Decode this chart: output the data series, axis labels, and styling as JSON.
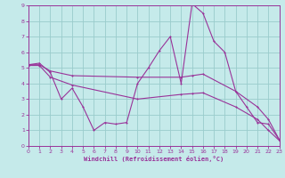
{
  "xlabel": "Windchill (Refroidissement éolien,°C)",
  "background_color": "#c5eaea",
  "grid_color": "#99cccc",
  "line_color": "#993399",
  "xlim": [
    0,
    23
  ],
  "ylim": [
    0,
    9
  ],
  "xticks": [
    0,
    1,
    2,
    3,
    4,
    5,
    6,
    7,
    8,
    9,
    10,
    11,
    12,
    13,
    14,
    15,
    16,
    17,
    18,
    19,
    20,
    21,
    22,
    23
  ],
  "yticks": [
    0,
    1,
    2,
    3,
    4,
    5,
    6,
    7,
    8,
    9
  ],
  "line1_x": [
    0,
    1,
    2,
    3,
    4,
    5,
    6,
    7,
    8,
    9,
    10,
    11,
    12,
    13,
    14,
    15,
    16,
    17,
    18,
    19,
    20,
    21,
    22,
    23
  ],
  "line1_y": [
    5.2,
    5.3,
    4.7,
    3.0,
    3.7,
    2.5,
    1.0,
    1.5,
    1.4,
    1.5,
    4.0,
    5.0,
    6.1,
    7.0,
    4.0,
    9.1,
    8.5,
    6.7,
    6.0,
    3.5,
    2.5,
    1.5,
    1.4,
    0.4
  ],
  "line2_x": [
    0,
    1,
    2,
    4,
    10,
    14,
    15,
    16,
    19,
    21,
    22,
    23
  ],
  "line2_y": [
    5.2,
    5.2,
    4.8,
    4.5,
    4.4,
    4.4,
    4.5,
    4.6,
    3.5,
    2.5,
    1.7,
    0.4
  ],
  "line3_x": [
    0,
    1,
    2,
    4,
    10,
    14,
    15,
    16,
    19,
    21,
    22,
    23
  ],
  "line3_y": [
    5.15,
    5.15,
    4.4,
    3.9,
    3.0,
    3.3,
    3.35,
    3.4,
    2.5,
    1.7,
    1.0,
    0.35
  ]
}
